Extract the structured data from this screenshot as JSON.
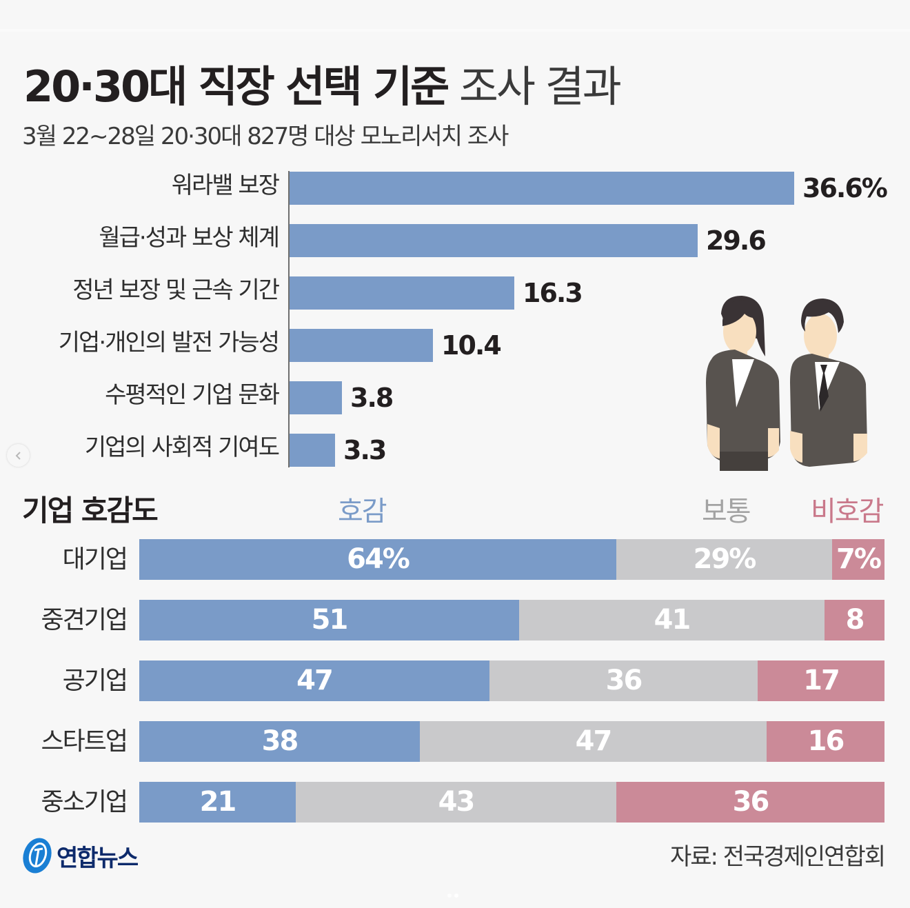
{
  "header": {
    "title_bold": "20·30대 직장 선택 기준",
    "title_light": "조사 결과",
    "subtitle": "3월 22~28일 20·30대 827명 대상 모노리서치 조사"
  },
  "chart_data": [
    {
      "type": "bar",
      "orientation": "horizontal",
      "title": "20·30대 직장 선택 기준 조사 결과",
      "categories": [
        "워라밸 보장",
        "월급·성과 보상 체계",
        "정년 보장 및 근속 기간",
        "기업·개인의 발전 가능성",
        "수평적인 기업 문화",
        "기업의 사회적 기여도"
      ],
      "values": [
        36.6,
        29.6,
        16.3,
        10.4,
        3.8,
        3.3
      ],
      "value_labels": [
        "36.6%",
        "29.6",
        "16.3",
        "10.4",
        "3.8",
        "3.3"
      ],
      "unit": "%",
      "xlim": [
        0,
        40
      ],
      "grid": false,
      "color": "#7a9bc8"
    },
    {
      "type": "bar",
      "orientation": "horizontal",
      "stacked": true,
      "title": "기업 호감도",
      "categories": [
        "대기업",
        "중견기업",
        "공기업",
        "스타트업",
        "중소기업"
      ],
      "series": [
        {
          "name": "호감",
          "color": "#7a9bc8",
          "values": [
            64,
            51,
            47,
            38,
            21
          ],
          "labels": [
            "64%",
            "51",
            "47",
            "38",
            "21"
          ]
        },
        {
          "name": "보통",
          "color": "#c9c9cb",
          "values": [
            29,
            41,
            36,
            47,
            43
          ],
          "labels": [
            "29%",
            "41",
            "36",
            "47",
            "43"
          ]
        },
        {
          "name": "비호감",
          "color": "#cb8a98",
          "values": [
            7,
            8,
            17,
            16,
            36
          ],
          "labels": [
            "7%",
            "8",
            "17",
            "16",
            "36"
          ]
        }
      ],
      "unit": "%",
      "legend": "top",
      "legend_colors": {
        "호감": "#7a9bc8",
        "보통": "#a3a3a3",
        "비호감": "#c9788a"
      }
    }
  ],
  "footer": {
    "logo_text": "연합뉴스",
    "source": "자료: 전국경제인연합회"
  },
  "icons": {
    "prev": "chevron-left-icon",
    "illustration": "office-workers-illustration",
    "logo": "yonhap-logo-icon"
  },
  "carousel": {
    "dots": 2,
    "active": 2
  }
}
